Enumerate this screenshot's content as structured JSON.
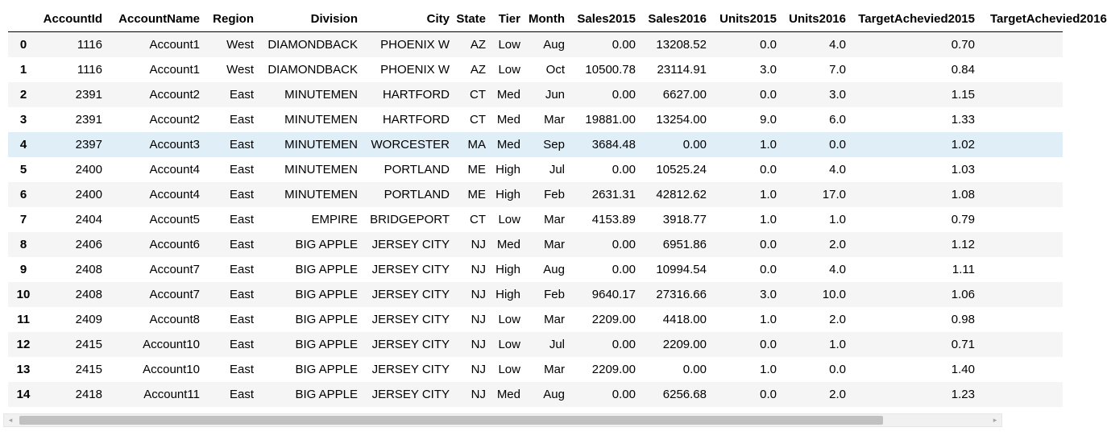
{
  "table": {
    "index_header": "",
    "columns": [
      "AccountId",
      "AccountName",
      "Region",
      "Division",
      "City",
      "State",
      "Tier",
      "Month",
      "Sales2015",
      "Sales2016",
      "Units2015",
      "Units2016",
      "TargetAchevied2015",
      "TargetAchevied2016"
    ],
    "rows": [
      {
        "index": "0",
        "cells": [
          "1116",
          "Account1",
          "West",
          "DIAMONDBACK",
          "PHOENIX W",
          "AZ",
          "Low",
          "Aug",
          "0.00",
          "13208.52",
          "0.0",
          "4.0",
          "0.70",
          ""
        ]
      },
      {
        "index": "1",
        "cells": [
          "1116",
          "Account1",
          "West",
          "DIAMONDBACK",
          "PHOENIX W",
          "AZ",
          "Low",
          "Oct",
          "10500.78",
          "23114.91",
          "3.0",
          "7.0",
          "0.84",
          ""
        ]
      },
      {
        "index": "2",
        "cells": [
          "2391",
          "Account2",
          "East",
          "MINUTEMEN",
          "HARTFORD",
          "CT",
          "Med",
          "Jun",
          "0.00",
          "6627.00",
          "0.0",
          "3.0",
          "1.15",
          ""
        ]
      },
      {
        "index": "3",
        "cells": [
          "2391",
          "Account2",
          "East",
          "MINUTEMEN",
          "HARTFORD",
          "CT",
          "Med",
          "Mar",
          "19881.00",
          "13254.00",
          "9.0",
          "6.0",
          "1.33",
          ""
        ]
      },
      {
        "index": "4",
        "cells": [
          "2397",
          "Account3",
          "East",
          "MINUTEMEN",
          "WORCESTER",
          "MA",
          "Med",
          "Sep",
          "3684.48",
          "0.00",
          "1.0",
          "0.0",
          "1.02",
          ""
        ]
      },
      {
        "index": "5",
        "cells": [
          "2400",
          "Account4",
          "East",
          "MINUTEMEN",
          "PORTLAND",
          "ME",
          "High",
          "Jul",
          "0.00",
          "10525.24",
          "0.0",
          "4.0",
          "1.03",
          ""
        ]
      },
      {
        "index": "6",
        "cells": [
          "2400",
          "Account4",
          "East",
          "MINUTEMEN",
          "PORTLAND",
          "ME",
          "High",
          "Feb",
          "2631.31",
          "42812.62",
          "1.0",
          "17.0",
          "1.08",
          ""
        ]
      },
      {
        "index": "7",
        "cells": [
          "2404",
          "Account5",
          "East",
          "EMPIRE",
          "BRIDGEPORT",
          "CT",
          "Low",
          "Mar",
          "4153.89",
          "3918.77",
          "1.0",
          "1.0",
          "0.79",
          ""
        ]
      },
      {
        "index": "8",
        "cells": [
          "2406",
          "Account6",
          "East",
          "BIG APPLE",
          "JERSEY CITY",
          "NJ",
          "Med",
          "Mar",
          "0.00",
          "6951.86",
          "0.0",
          "2.0",
          "1.12",
          ""
        ]
      },
      {
        "index": "9",
        "cells": [
          "2408",
          "Account7",
          "East",
          "BIG APPLE",
          "JERSEY CITY",
          "NJ",
          "High",
          "Aug",
          "0.00",
          "10994.54",
          "0.0",
          "4.0",
          "1.11",
          ""
        ]
      },
      {
        "index": "10",
        "cells": [
          "2408",
          "Account7",
          "East",
          "BIG APPLE",
          "JERSEY CITY",
          "NJ",
          "High",
          "Feb",
          "9640.17",
          "27316.66",
          "3.0",
          "10.0",
          "1.06",
          ""
        ]
      },
      {
        "index": "11",
        "cells": [
          "2409",
          "Account8",
          "East",
          "BIG APPLE",
          "JERSEY CITY",
          "NJ",
          "Low",
          "Mar",
          "2209.00",
          "4418.00",
          "1.0",
          "2.0",
          "0.98",
          ""
        ]
      },
      {
        "index": "12",
        "cells": [
          "2415",
          "Account10",
          "East",
          "BIG APPLE",
          "JERSEY CITY",
          "NJ",
          "Low",
          "Jul",
          "0.00",
          "2209.00",
          "0.0",
          "1.0",
          "0.71",
          ""
        ]
      },
      {
        "index": "13",
        "cells": [
          "2415",
          "Account10",
          "East",
          "BIG APPLE",
          "JERSEY CITY",
          "NJ",
          "Low",
          "Mar",
          "2209.00",
          "0.00",
          "1.0",
          "0.0",
          "1.40",
          ""
        ]
      },
      {
        "index": "14",
        "cells": [
          "2418",
          "Account11",
          "East",
          "BIG APPLE",
          "JERSEY CITY",
          "NJ",
          "Med",
          "Aug",
          "0.00",
          "6256.68",
          "0.0",
          "2.0",
          "1.23",
          ""
        ]
      }
    ],
    "hovered_row": 4
  },
  "scrollbar": {
    "left_arrow_icon": "triangle-left-icon",
    "right_arrow_icon": "triangle-right-icon",
    "left_arrow": "◂",
    "right_arrow": "▸",
    "position": 0.0,
    "visible_fraction": 0.895
  },
  "colors": {
    "row_odd": "#f5f5f5",
    "row_even": "#ffffff",
    "row_hover": "#e0eef8",
    "header_rule": "#000000",
    "scroll_thumb": "#c1c1c1"
  }
}
